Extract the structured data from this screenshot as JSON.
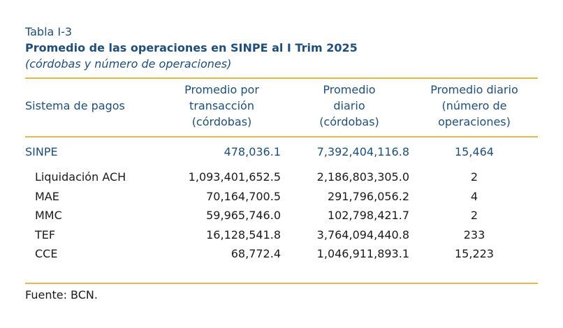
{
  "table": {
    "number": "Tabla I-3",
    "title": "Promedio de las operaciones en SINPE al I Trim 2025",
    "subtitle": "(córdobas y número de operaciones)",
    "headers": {
      "col1": "Sistema de pagos",
      "col2": [
        "Promedio por",
        "transacción",
        "(córdobas)"
      ],
      "col3": [
        "Promedio",
        "diario",
        "(córdobas)"
      ],
      "col4": [
        "Promedio diario",
        "(número de",
        "operaciones)"
      ]
    },
    "total_row": {
      "name": "SINPE",
      "avg_tx": "478,036.1",
      "avg_daily": "7,392,404,116.8",
      "daily_ops": "15,464"
    },
    "rows": [
      {
        "name": "Liquidación ACH",
        "avg_tx": "1,093,401,652.5",
        "avg_daily": "2,186,803,305.0",
        "daily_ops": "2"
      },
      {
        "name": "MAE",
        "avg_tx": "70,164,700.5",
        "avg_daily": "291,796,056.2",
        "daily_ops": "4"
      },
      {
        "name": "MMC",
        "avg_tx": "59,965,746.0",
        "avg_daily": "102,798,421.7",
        "daily_ops": "2"
      },
      {
        "name": "TEF",
        "avg_tx": "16,128,541.8",
        "avg_daily": "3,764,094,440.8",
        "daily_ops": "233"
      },
      {
        "name": "CCE",
        "avg_tx": "68,772.4",
        "avg_daily": "1,046,911,893.1",
        "daily_ops": "15,223"
      }
    ],
    "source": "Fuente: BCN."
  }
}
